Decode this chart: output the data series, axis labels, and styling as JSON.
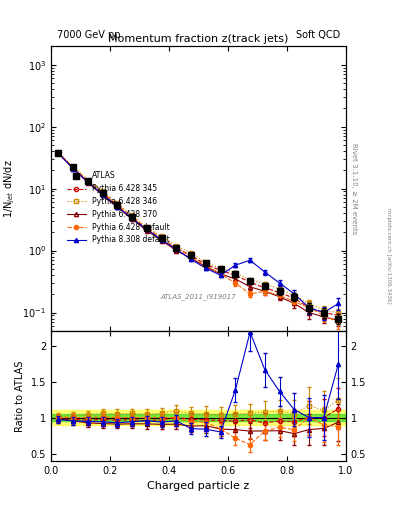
{
  "title_top": "Momentum fraction z(track jets)",
  "header_left": "7000 GeV pp",
  "header_right": "Soft QCD",
  "ylabel_main": "1/N$_{jet}$ dN/dz",
  "ylabel_ratio": "Ratio to ATLAS",
  "xlabel": "Charged particle z",
  "rivet_label": "Rivet 3.1.10, ≥ 2M events",
  "mcplots_label": "mcplots.cern.ch [arXiv:1306.3436]",
  "atlas_label": "ATLAS_2011_I919017",
  "ylim_main": [
    0.05,
    2000
  ],
  "ylim_ratio": [
    0.4,
    2.2
  ],
  "xlim": [
    0.0,
    1.0
  ],
  "atlas_x": [
    0.025,
    0.075,
    0.125,
    0.175,
    0.225,
    0.275,
    0.325,
    0.375,
    0.425,
    0.475,
    0.525,
    0.575,
    0.625,
    0.675,
    0.725,
    0.775,
    0.825,
    0.875,
    0.925,
    0.975
  ],
  "atlas_y": [
    38.0,
    22.0,
    13.5,
    8.5,
    5.5,
    3.5,
    2.3,
    1.6,
    1.1,
    0.85,
    0.62,
    0.5,
    0.42,
    0.32,
    0.27,
    0.22,
    0.18,
    0.12,
    0.1,
    0.08
  ],
  "atlas_yerr": [
    1.5,
    1.0,
    0.6,
    0.4,
    0.25,
    0.18,
    0.12,
    0.09,
    0.07,
    0.06,
    0.05,
    0.04,
    0.04,
    0.03,
    0.03,
    0.025,
    0.025,
    0.02,
    0.018,
    0.015
  ],
  "p345_x": [
    0.025,
    0.075,
    0.125,
    0.175,
    0.225,
    0.275,
    0.325,
    0.375,
    0.425,
    0.475,
    0.525,
    0.575,
    0.625,
    0.675,
    0.725,
    0.775,
    0.825,
    0.875,
    0.925,
    0.975
  ],
  "p345_y": [
    37.0,
    21.5,
    13.0,
    8.3,
    5.3,
    3.4,
    2.2,
    1.55,
    1.1,
    0.83,
    0.6,
    0.48,
    0.4,
    0.31,
    0.25,
    0.21,
    0.17,
    0.12,
    0.1,
    0.09
  ],
  "p345_yerr": [
    1.2,
    0.8,
    0.5,
    0.35,
    0.22,
    0.14,
    0.1,
    0.07,
    0.05,
    0.04,
    0.04,
    0.03,
    0.03,
    0.025,
    0.025,
    0.02,
    0.02,
    0.02,
    0.018,
    0.015
  ],
  "p346_x": [
    0.025,
    0.075,
    0.125,
    0.175,
    0.225,
    0.275,
    0.325,
    0.375,
    0.425,
    0.475,
    0.525,
    0.575,
    0.625,
    0.675,
    0.725,
    0.775,
    0.825,
    0.875,
    0.925,
    0.975
  ],
  "p346_y": [
    38.5,
    22.5,
    14.0,
    9.0,
    5.8,
    3.7,
    2.4,
    1.7,
    1.2,
    0.9,
    0.65,
    0.52,
    0.44,
    0.34,
    0.29,
    0.24,
    0.19,
    0.14,
    0.11,
    0.1
  ],
  "p346_yerr": [
    1.2,
    0.8,
    0.5,
    0.35,
    0.22,
    0.14,
    0.1,
    0.07,
    0.05,
    0.04,
    0.04,
    0.03,
    0.03,
    0.025,
    0.025,
    0.02,
    0.02,
    0.02,
    0.018,
    0.015
  ],
  "p370_x": [
    0.025,
    0.075,
    0.125,
    0.175,
    0.225,
    0.275,
    0.325,
    0.375,
    0.425,
    0.475,
    0.525,
    0.575,
    0.625,
    0.675,
    0.725,
    0.775,
    0.825,
    0.875,
    0.925,
    0.975
  ],
  "p370_y": [
    37.5,
    21.0,
    12.5,
    7.8,
    5.0,
    3.2,
    2.1,
    1.45,
    1.0,
    0.75,
    0.55,
    0.42,
    0.35,
    0.26,
    0.22,
    0.18,
    0.14,
    0.1,
    0.085,
    0.075
  ],
  "p370_yerr": [
    1.2,
    0.8,
    0.5,
    0.35,
    0.22,
    0.14,
    0.1,
    0.07,
    0.05,
    0.04,
    0.04,
    0.03,
    0.03,
    0.025,
    0.025,
    0.02,
    0.02,
    0.02,
    0.018,
    0.015
  ],
  "pdef_x": [
    0.025,
    0.075,
    0.125,
    0.175,
    0.225,
    0.275,
    0.325,
    0.375,
    0.425,
    0.475,
    0.525,
    0.575,
    0.625,
    0.675,
    0.725,
    0.775,
    0.825,
    0.875,
    0.925,
    0.975
  ],
  "pdef_y": [
    38.0,
    22.0,
    13.5,
    8.6,
    5.5,
    3.5,
    2.3,
    1.6,
    1.1,
    0.8,
    0.58,
    0.42,
    0.3,
    0.2,
    0.22,
    0.19,
    0.15,
    0.12,
    0.09,
    0.07
  ],
  "pdef_yerr": [
    1.2,
    0.8,
    0.5,
    0.35,
    0.22,
    0.14,
    0.1,
    0.07,
    0.05,
    0.04,
    0.04,
    0.03,
    0.03,
    0.025,
    0.025,
    0.02,
    0.02,
    0.02,
    0.018,
    0.015
  ],
  "p8_x": [
    0.025,
    0.075,
    0.125,
    0.175,
    0.225,
    0.275,
    0.325,
    0.375,
    0.425,
    0.475,
    0.525,
    0.575,
    0.625,
    0.675,
    0.725,
    0.775,
    0.825,
    0.875,
    0.925,
    0.975
  ],
  "p8_y": [
    37.0,
    21.0,
    12.8,
    8.0,
    5.1,
    3.3,
    2.2,
    1.5,
    1.05,
    0.72,
    0.52,
    0.4,
    0.58,
    0.7,
    0.45,
    0.3,
    0.2,
    0.12,
    0.1,
    0.14
  ],
  "p8_yerr": [
    1.2,
    0.8,
    0.5,
    0.35,
    0.22,
    0.14,
    0.1,
    0.07,
    0.05,
    0.04,
    0.04,
    0.03,
    0.04,
    0.05,
    0.04,
    0.03,
    0.03,
    0.025,
    0.025,
    0.03
  ],
  "color_atlas": "#000000",
  "color_p345": "#cc0000",
  "color_p346": "#cc8800",
  "color_p370": "#880000",
  "color_pdef": "#ff6600",
  "color_p8": "#0000cc",
  "band_yellow": 0.1,
  "band_green": 0.05
}
